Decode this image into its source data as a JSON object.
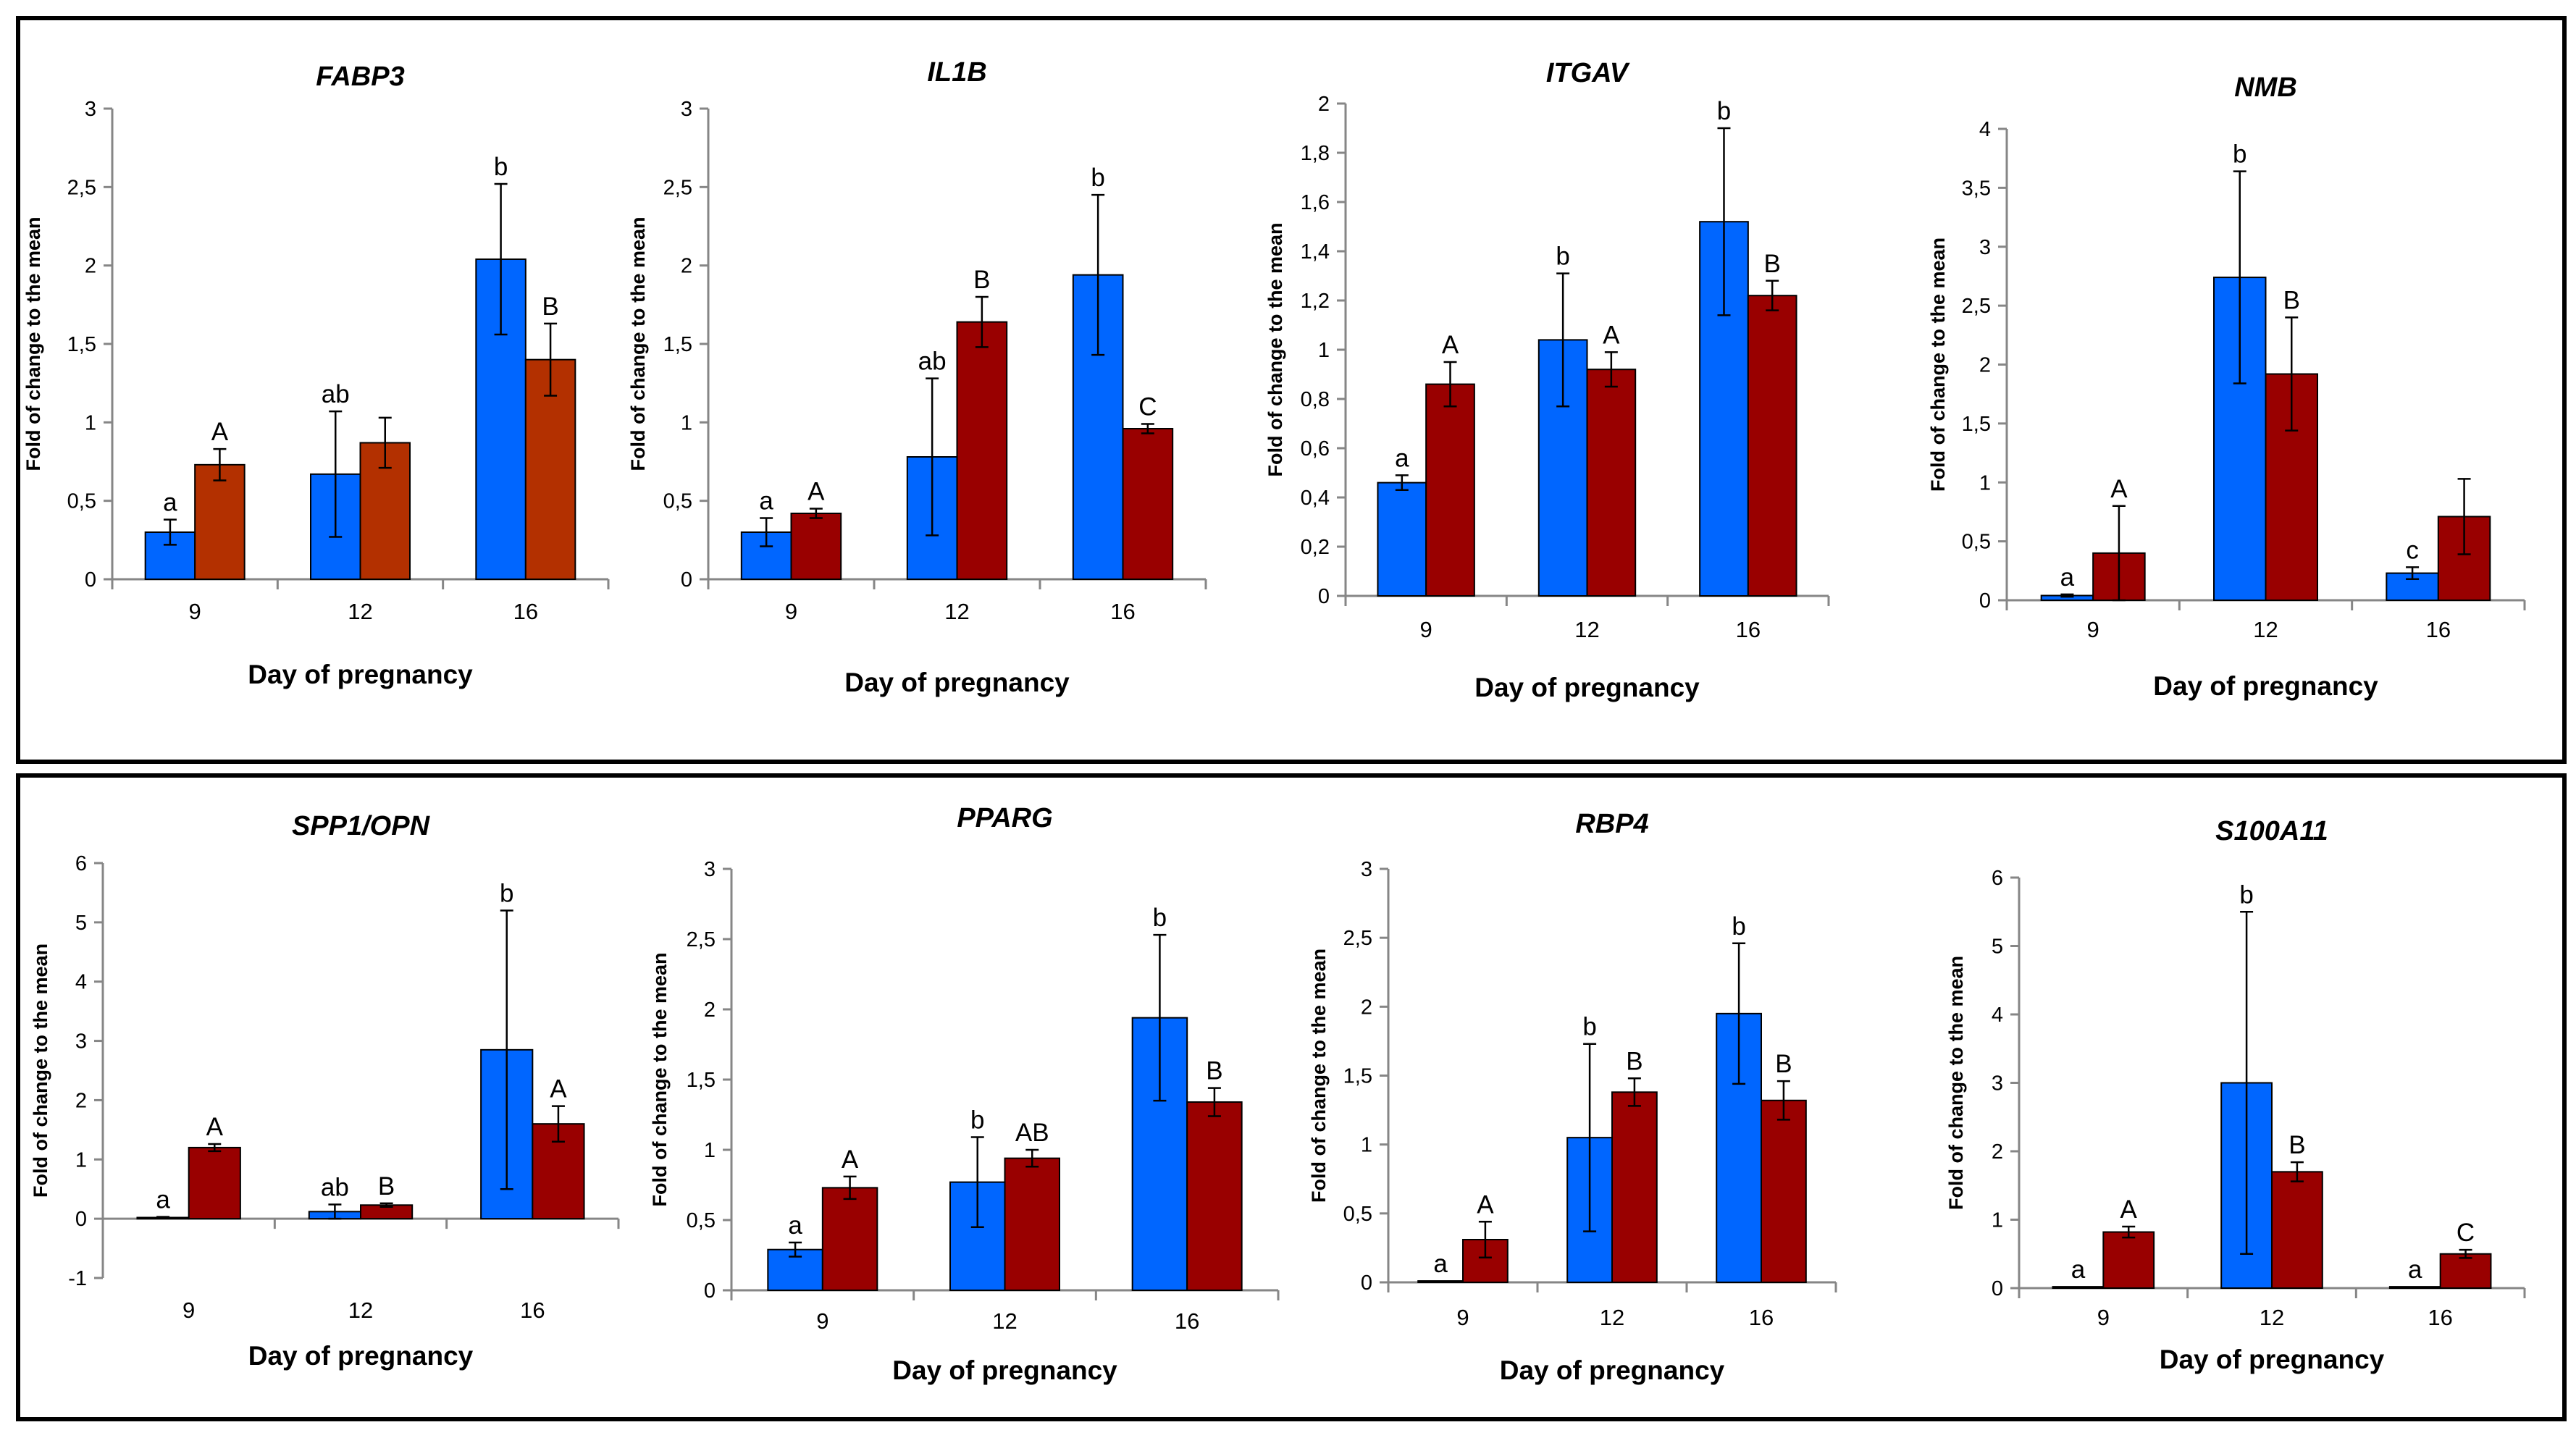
{
  "colors": {
    "series1": "#0066FF",
    "series2_default": "#990000",
    "series2_fabp3": "#B33000",
    "axis": "#868686",
    "text": "#000000"
  },
  "chart_data": [
    {
      "type": "bar",
      "title": "FABP3",
      "xlabel": "Day of pregnancy",
      "ylabel": "Fold of change  to the mean",
      "categories": [
        "9",
        "12",
        "16"
      ],
      "ylim": [
        0,
        3
      ],
      "yticks": [
        "0",
        "0,5",
        "1",
        "1,5",
        "2",
        "2,5",
        "3"
      ],
      "series": [
        {
          "name": "series1",
          "values": [
            0.3,
            0.67,
            2.04
          ],
          "errors": [
            0.08,
            0.4,
            0.48
          ],
          "labels": [
            "a",
            "ab",
            "b"
          ]
        },
        {
          "name": "series2",
          "color": "#B33000",
          "values": [
            0.73,
            0.87,
            1.4
          ],
          "errors": [
            0.1,
            0.16,
            0.23
          ],
          "labels": [
            "A",
            "",
            "B"
          ]
        }
      ]
    },
    {
      "type": "bar",
      "title": "IL1B",
      "xlabel": "Day of pregnancy",
      "ylabel": "Fold of change  to the mean",
      "categories": [
        "9",
        "12",
        "16"
      ],
      "ylim": [
        0,
        3
      ],
      "yticks": [
        "0",
        "0,5",
        "1",
        "1,5",
        "2",
        "2,5",
        "3"
      ],
      "series": [
        {
          "name": "series1",
          "values": [
            0.3,
            0.78,
            1.94
          ],
          "errors": [
            0.09,
            0.5,
            0.51
          ],
          "labels": [
            "a",
            "ab",
            "b"
          ]
        },
        {
          "name": "series2",
          "values": [
            0.42,
            1.64,
            0.96
          ],
          "errors": [
            0.03,
            0.16,
            0.03
          ],
          "labels": [
            "A",
            "B",
            "C"
          ]
        }
      ]
    },
    {
      "type": "bar",
      "title": "ITGAV",
      "xlabel": "Day of pregnancy",
      "ylabel": "Fold of change  to the mean",
      "categories": [
        "9",
        "12",
        "16"
      ],
      "ylim": [
        0,
        2
      ],
      "yticks": [
        "0",
        "0,2",
        "0,4",
        "0,6",
        "0,8",
        "1",
        "1,2",
        "1,4",
        "1,6",
        "1,8",
        "2"
      ],
      "series": [
        {
          "name": "series1",
          "values": [
            0.46,
            1.04,
            1.52
          ],
          "errors": [
            0.03,
            0.27,
            0.38
          ],
          "labels": [
            "a",
            "b",
            "b"
          ]
        },
        {
          "name": "series2",
          "values": [
            0.86,
            0.92,
            1.22
          ],
          "errors": [
            0.09,
            0.07,
            0.06
          ],
          "labels": [
            "A",
            "A",
            "B"
          ]
        }
      ]
    },
    {
      "type": "bar",
      "title": "NMB",
      "xlabel": "Day of pregnancy",
      "ylabel": "Fold of change  to the mean",
      "categories": [
        "9",
        "12",
        "16"
      ],
      "ylim": [
        0,
        4
      ],
      "yticks": [
        "0",
        "0,5",
        "1",
        "1,5",
        "2",
        "2,5",
        "3",
        "3,5",
        "4"
      ],
      "series": [
        {
          "name": "series1",
          "values": [
            0.04,
            2.74,
            0.23
          ],
          "errors": [
            0.01,
            0.9,
            0.05
          ],
          "labels": [
            "a",
            "b",
            "c"
          ]
        },
        {
          "name": "series2",
          "values": [
            0.4,
            1.92,
            0.71
          ],
          "errors": [
            0.4,
            0.48,
            0.32
          ],
          "labels": [
            "A",
            "B",
            ""
          ]
        }
      ]
    },
    {
      "type": "bar",
      "title": "SPP1/OPN",
      "xlabel": "Day of pregnancy",
      "ylabel": "Fold of change  to the mean",
      "categories": [
        "9",
        "12",
        "16"
      ],
      "ylim": [
        -1,
        6
      ],
      "yticks": [
        "-1",
        "0",
        "1",
        "2",
        "3",
        "4",
        "5",
        "6"
      ],
      "series": [
        {
          "name": "series1",
          "values": [
            0.02,
            0.12,
            2.85
          ],
          "errors": [
            0.01,
            0.12,
            2.35
          ],
          "labels": [
            "a",
            "ab",
            "b"
          ]
        },
        {
          "name": "series2",
          "values": [
            1.2,
            0.23,
            1.6
          ],
          "errors": [
            0.06,
            0.03,
            0.3
          ],
          "labels": [
            "A",
            "B",
            "A"
          ]
        }
      ]
    },
    {
      "type": "bar",
      "title": "PPARG",
      "xlabel": "Day of pregnancy",
      "ylabel": "Fold of change  to the mean",
      "categories": [
        "9",
        "12",
        "16"
      ],
      "ylim": [
        0,
        3
      ],
      "yticks": [
        "0",
        "0,5",
        "1",
        "1,5",
        "2",
        "2,5",
        "3"
      ],
      "series": [
        {
          "name": "series1",
          "values": [
            0.29,
            0.77,
            1.94
          ],
          "errors": [
            0.05,
            0.32,
            0.59
          ],
          "labels": [
            "a",
            "b",
            "b"
          ]
        },
        {
          "name": "series2",
          "values": [
            0.73,
            0.94,
            1.34
          ],
          "errors": [
            0.08,
            0.06,
            0.1
          ],
          "labels": [
            "A",
            "AB",
            "B"
          ]
        }
      ]
    },
    {
      "type": "bar",
      "title": "RBP4",
      "xlabel": "Day of pregnancy",
      "ylabel": "Fold of change  to the mean",
      "categories": [
        "9",
        "12",
        "16"
      ],
      "ylim": [
        0,
        3
      ],
      "yticks": [
        "0",
        "0,5",
        "1",
        "1,5",
        "2",
        "2,5",
        "3"
      ],
      "series": [
        {
          "name": "series1",
          "values": [
            0.01,
            1.05,
            1.95
          ],
          "errors": [
            0.0,
            0.68,
            0.51
          ],
          "labels": [
            "a",
            "b",
            "b"
          ]
        },
        {
          "name": "series2",
          "values": [
            0.31,
            1.38,
            1.32
          ],
          "errors": [
            0.13,
            0.1,
            0.14
          ],
          "labels": [
            "A",
            "B",
            "B"
          ]
        }
      ]
    },
    {
      "type": "bar",
      "title": "S100A11",
      "xlabel": "Day of pregnancy",
      "ylabel": "Fold of change  to the mean",
      "categories": [
        "9",
        "12",
        "16"
      ],
      "ylim": [
        0,
        6
      ],
      "yticks": [
        "0",
        "1",
        "2",
        "3",
        "4",
        "5",
        "6"
      ],
      "series": [
        {
          "name": "series1",
          "values": [
            0.02,
            3.0,
            0.02
          ],
          "errors": [
            0.0,
            2.5,
            0.0
          ],
          "labels": [
            "a",
            "b",
            "a"
          ]
        },
        {
          "name": "series2",
          "values": [
            0.82,
            1.7,
            0.5
          ],
          "errors": [
            0.08,
            0.14,
            0.06
          ],
          "labels": [
            "A",
            "B",
            "C"
          ]
        }
      ]
    }
  ]
}
